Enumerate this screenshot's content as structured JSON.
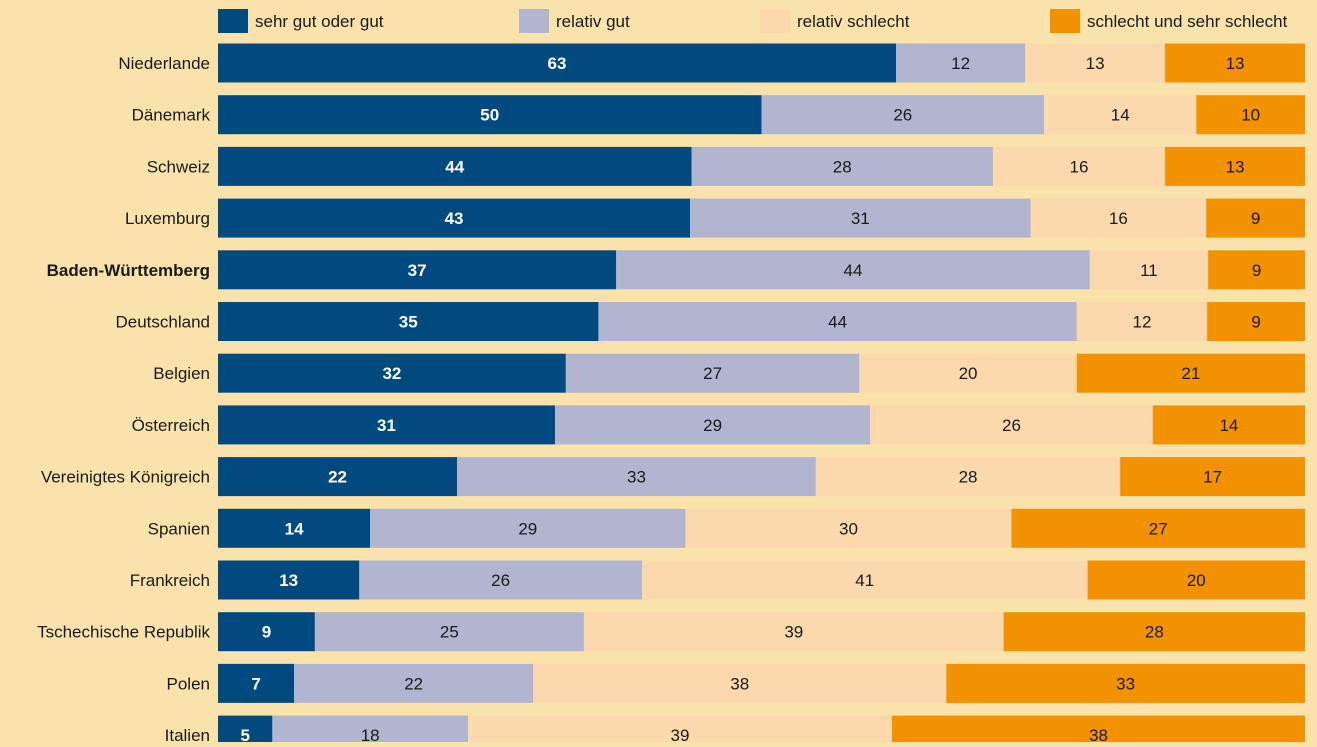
{
  "colors": {
    "background": "#f9e3ab",
    "sehr_gut": "#004a80",
    "relativ_gut": "#b2b5cf",
    "relativ_schlecht": "#fcd9ad",
    "schlecht": "#f39200",
    "text_dark": "#1a1a1a",
    "text_light": "#ffffff"
  },
  "chart_data": {
    "type": "bar",
    "orientation": "horizontal",
    "stacked": true,
    "normalized_percent": true,
    "title": "",
    "xlabel": "",
    "ylabel": "",
    "legend_position": "top",
    "grid": false,
    "categories": [
      "Niederlande",
      "Dänemark",
      "Schweiz",
      "Luxemburg",
      "Baden-Württemberg",
      "Deutschland",
      "Belgien",
      "Österreich",
      "Vereinigtes Königreich",
      "Spanien",
      "Frankreich",
      "Tschechische Republik",
      "Polen",
      "Italien"
    ],
    "highlighted_category": "Baden-Württemberg",
    "series": [
      {
        "name": "sehr gut oder gut",
        "color": "#004a80",
        "label_color": "#ffffff",
        "label_bold": true,
        "values": [
          63,
          50,
          44,
          43,
          37,
          35,
          32,
          31,
          22,
          14,
          13,
          9,
          7,
          5
        ]
      },
      {
        "name": "relativ gut",
        "color": "#b2b5cf",
        "label_color": "#1a1a1a",
        "label_bold": false,
        "values": [
          12,
          26,
          28,
          31,
          44,
          44,
          27,
          29,
          33,
          29,
          26,
          25,
          22,
          18
        ]
      },
      {
        "name": "relativ schlecht",
        "color": "#fcd9ad",
        "label_color": "#1a1a1a",
        "label_bold": false,
        "values": [
          13,
          14,
          16,
          16,
          11,
          12,
          20,
          26,
          28,
          30,
          41,
          39,
          38,
          39
        ]
      },
      {
        "name": "schlecht und sehr schlecht",
        "color": "#f39200",
        "label_color": "#1a1a1a",
        "label_bold": false,
        "values": [
          13,
          10,
          13,
          9,
          9,
          9,
          21,
          14,
          17,
          27,
          20,
          28,
          33,
          38
        ]
      }
    ]
  }
}
